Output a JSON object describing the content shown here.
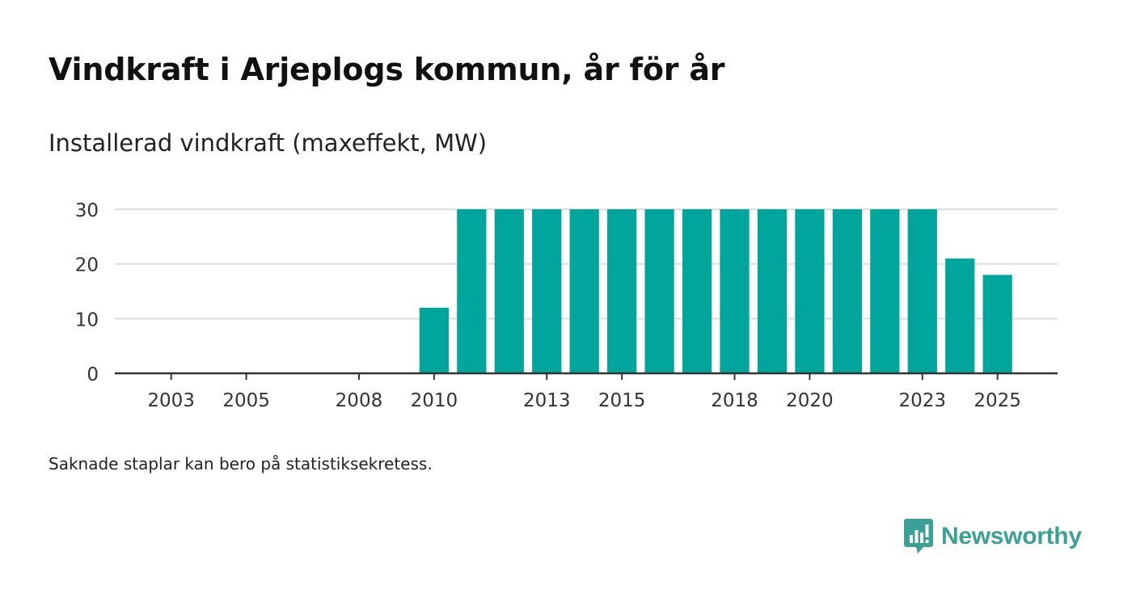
{
  "title": "Vindkraft i Arjeplogs kommun, år för år",
  "subtitle": "Installerad vindkraft (maxeffekt, MW)",
  "note": "Saknade staplar kan bero på statistiksekretess.",
  "brand": {
    "name": "Newsworthy",
    "color": "#3ba196"
  },
  "colors": {
    "bar": "#00a69c",
    "grid": "#dddddd",
    "axis": "#333333",
    "text": "#333333"
  },
  "chart_data": {
    "type": "bar",
    "title": "Vindkraft i Arjeplogs kommun, år för år",
    "ylabel": "Installerad vindkraft (maxeffekt, MW)",
    "xlabel": "",
    "ylim": [
      0,
      30
    ],
    "yticks": [
      0,
      10,
      20,
      30
    ],
    "xlim": [
      2001.5,
      2026.6
    ],
    "xticks": [
      "2003",
      "2005",
      "2008",
      "2010",
      "2013",
      "2015",
      "2018",
      "2020",
      "2023",
      "2025"
    ],
    "categories": [
      "2010",
      "2011",
      "2012",
      "2013",
      "2014",
      "2015",
      "2016",
      "2017",
      "2018",
      "2019",
      "2020",
      "2021",
      "2022",
      "2023",
      "2024",
      "2025"
    ],
    "values": [
      12,
      30,
      30,
      30,
      30,
      30,
      30,
      30,
      30,
      30,
      30,
      30,
      30,
      30,
      21,
      18
    ],
    "grid": true
  }
}
